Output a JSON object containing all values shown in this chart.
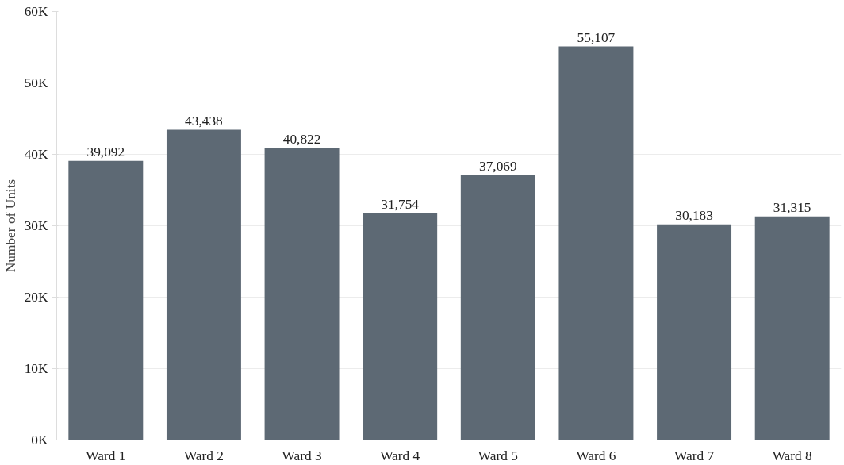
{
  "chart_data": {
    "type": "bar",
    "ylabel": "Number of Units",
    "categories": [
      "Ward 1",
      "Ward 2",
      "Ward 3",
      "Ward 4",
      "Ward 5",
      "Ward 6",
      "Ward 7",
      "Ward 8"
    ],
    "values": [
      39092,
      43438,
      40822,
      31754,
      37069,
      55107,
      30183,
      31315
    ],
    "value_labels": [
      "39,092",
      "43,438",
      "40,822",
      "31,754",
      "37,069",
      "55,107",
      "30,183",
      "31,315"
    ],
    "color": "#5d6974",
    "grid": "y",
    "ylim": [
      0,
      60000
    ],
    "yticks": [
      {
        "value": 0,
        "label": "0K"
      },
      {
        "value": 10000,
        "label": "10K"
      },
      {
        "value": 20000,
        "label": "20K"
      },
      {
        "value": 30000,
        "label": "30K"
      },
      {
        "value": 40000,
        "label": "40K"
      },
      {
        "value": 50000,
        "label": "50K"
      },
      {
        "value": 60000,
        "label": "60K"
      }
    ]
  }
}
